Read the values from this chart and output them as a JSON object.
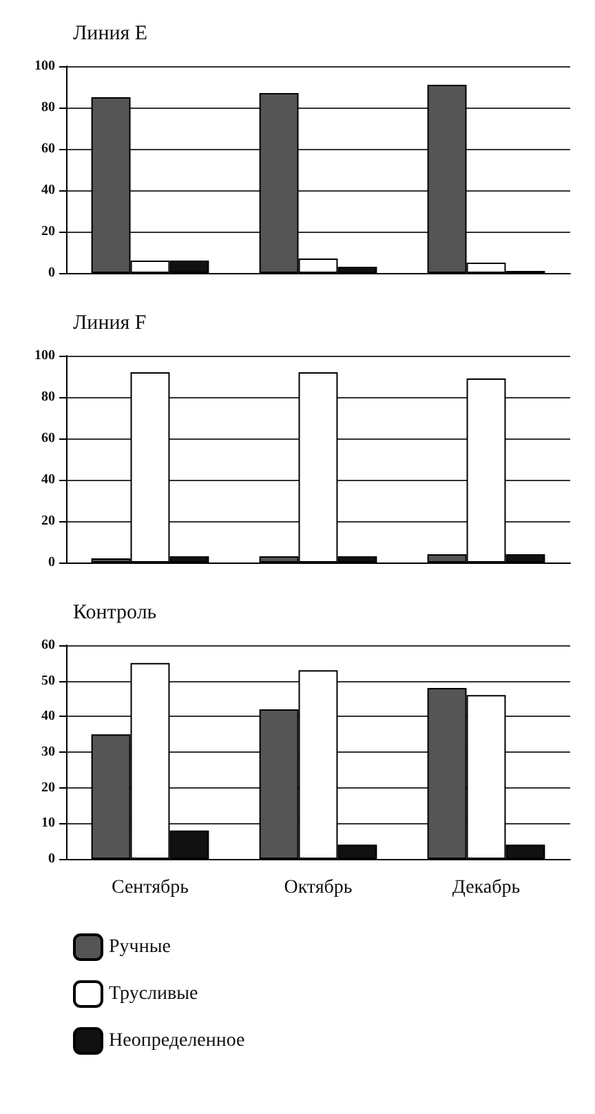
{
  "chart_data": [
    {
      "type": "bar",
      "title": "Линия E",
      "categories": [
        null,
        null,
        null
      ],
      "ylim": [
        0,
        100
      ],
      "yticks": [
        0,
        20,
        40,
        60,
        80,
        100
      ],
      "grid": "y",
      "legend": false,
      "tick_labels": "y",
      "series": [
        {
          "color": "#555555",
          "values": [
            85,
            87,
            91
          ]
        },
        {
          "color": "#ffffff",
          "values": [
            6,
            7,
            5
          ]
        },
        {
          "color": "#111111",
          "values": [
            6,
            3,
            1
          ]
        }
      ]
    },
    {
      "type": "bar",
      "title": "Линия F",
      "categories": [
        null,
        null,
        null
      ],
      "ylim": [
        0,
        100
      ],
      "yticks": [
        0,
        20,
        40,
        60,
        80,
        100
      ],
      "grid": "y",
      "legend": false,
      "tick_labels": "y",
      "series": [
        {
          "color": "#555555",
          "values": [
            2,
            3,
            4
          ]
        },
        {
          "color": "#ffffff",
          "values": [
            92,
            92,
            89
          ]
        },
        {
          "color": "#111111",
          "values": [
            3,
            3,
            4
          ]
        }
      ]
    },
    {
      "type": "bar",
      "title": "Контроль",
      "categories": [
        "Сентябрь",
        "Октябрь",
        "Декабрь"
      ],
      "ylim": [
        0,
        60
      ],
      "yticks": [
        0,
        10,
        20,
        30,
        40,
        50,
        60
      ],
      "grid": "y",
      "legend": "bottom",
      "series": [
        {
          "name": "Ручные",
          "color": "#555555",
          "values": [
            35,
            42,
            48
          ]
        },
        {
          "name": "Трусливые",
          "color": "#ffffff",
          "values": [
            55,
            53,
            46
          ]
        },
        {
          "name": "Неопределенное",
          "color": "#111111",
          "values": [
            8,
            4,
            4
          ]
        }
      ]
    }
  ]
}
